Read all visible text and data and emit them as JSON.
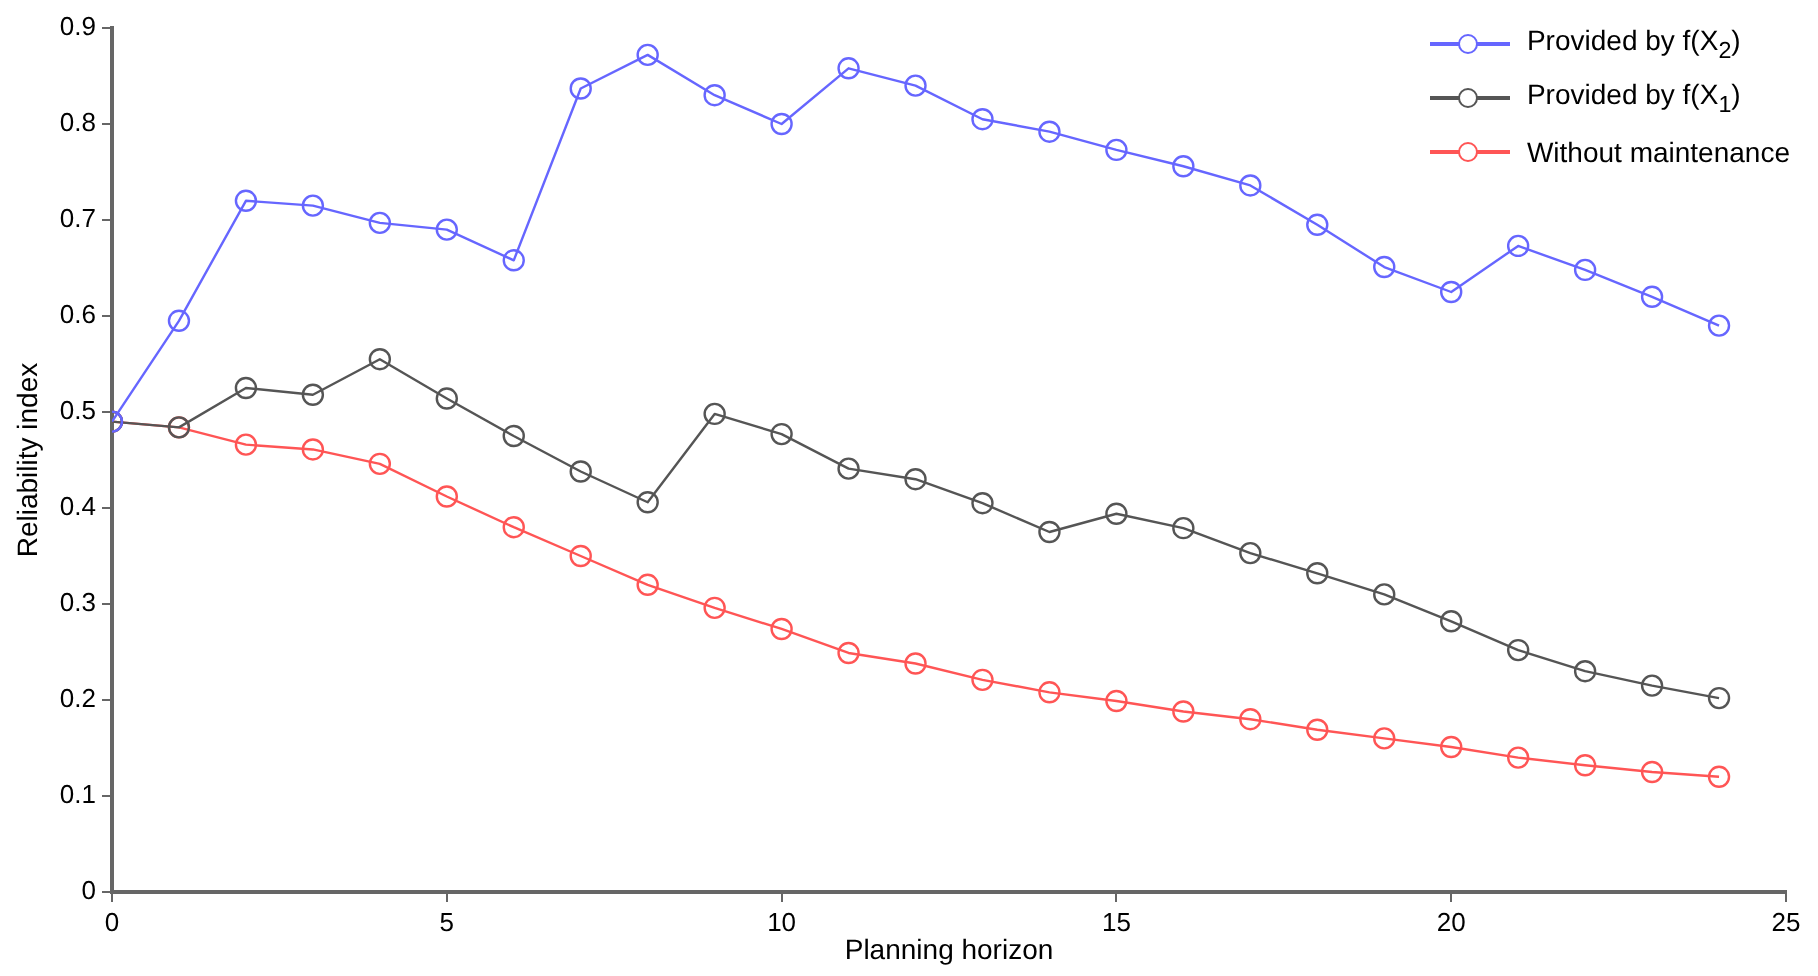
{
  "chart_data": {
    "type": "line",
    "xlabel": "Planning horizon",
    "ylabel": "Reliability index",
    "x": [
      0,
      1,
      2,
      3,
      4,
      5,
      6,
      7,
      8,
      9,
      10,
      11,
      12,
      13,
      14,
      15,
      16,
      17,
      18,
      19,
      20,
      21,
      22,
      23,
      24
    ],
    "series": [
      {
        "name": "Provided by f(X$_{2}$)",
        "color": "#6666ff",
        "values": [
          0.49,
          0.595,
          0.72,
          0.715,
          0.697,
          0.69,
          0.658,
          0.837,
          0.872,
          0.83,
          0.8,
          0.858,
          0.84,
          0.805,
          0.792,
          0.773,
          0.756,
          0.736,
          0.695,
          0.651,
          0.625,
          0.673,
          0.648,
          0.62,
          0.59
        ]
      },
      {
        "name": "Provided by f(X$_{1}$)",
        "color": "#555555",
        "values": [
          0.49,
          0.484,
          0.525,
          0.518,
          0.555,
          0.514,
          0.475,
          0.438,
          0.406,
          0.498,
          0.477,
          0.441,
          0.43,
          0.405,
          0.375,
          0.394,
          0.379,
          0.353,
          0.332,
          0.31,
          0.282,
          0.252,
          0.23,
          0.215,
          0.202
        ]
      },
      {
        "name": "Without maintenance",
        "color": "#ff5555",
        "values": [
          0.49,
          0.484,
          0.466,
          0.461,
          0.446,
          0.412,
          0.38,
          0.35,
          0.32,
          0.296,
          0.274,
          0.249,
          0.238,
          0.221,
          0.208,
          0.199,
          0.188,
          0.18,
          0.169,
          0.16,
          0.151,
          0.14,
          0.132,
          0.125,
          0.12
        ]
      }
    ],
    "xlim": [
      0,
      25
    ],
    "xticks": [
      0,
      5,
      10,
      15,
      20,
      25
    ],
    "ylim": [
      0,
      0.9
    ],
    "yticks": [
      0,
      0.1,
      0.2,
      0.3,
      0.4,
      0.5,
      0.6,
      0.7,
      0.8,
      0.9
    ],
    "grid": false,
    "legend": "top right",
    "marker": "circle",
    "line_style": "solid"
  }
}
